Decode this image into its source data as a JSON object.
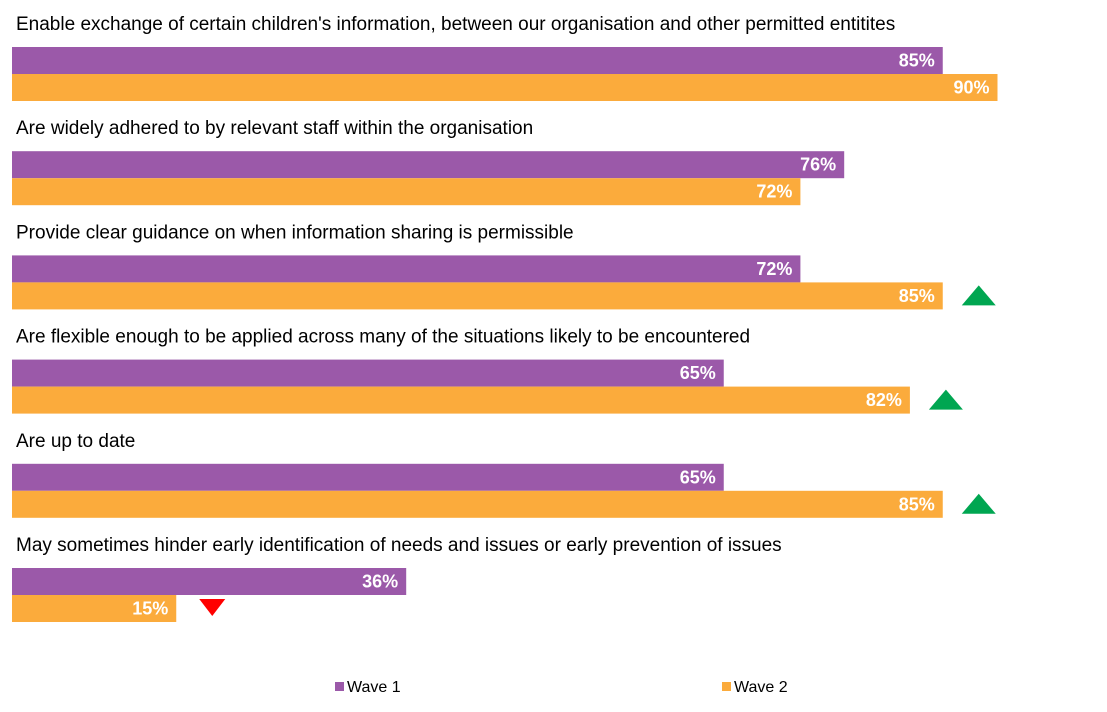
{
  "chart_data": {
    "type": "bar",
    "orientation": "horizontal",
    "title": "",
    "xlabel": "",
    "ylabel": "",
    "xlim": [
      0,
      100
    ],
    "grid": false,
    "legend_position": "bottom",
    "categories": [
      "Enable exchange of certain children's information, between our organisation  and other permitted entitites",
      "Are widely adhered to by relevant staff within the organisation",
      "Provide clear guidance on when information sharing is permissible",
      "Are flexible enough to be applied across many of the situations likely to be encountered",
      "Are up to date",
      "May sometimes hinder early identification of needs and issues or early prevention of issues"
    ],
    "series": [
      {
        "name": "Wave 1",
        "color": "#9b59a9",
        "values": [
          85,
          76,
          72,
          65,
          65,
          36
        ],
        "value_labels": [
          "85%",
          "76%",
          "72%",
          "65%",
          "65%",
          "36%"
        ]
      },
      {
        "name": "Wave 2",
        "color": "#fbab3c",
        "values": [
          90,
          72,
          85,
          82,
          85,
          15
        ],
        "value_labels": [
          "90%",
          "72%",
          "85%",
          "82%",
          "85%",
          "15%"
        ]
      }
    ],
    "change_markers": [
      "none",
      "none",
      "up",
      "up",
      "up",
      "down"
    ],
    "marker_colors": {
      "up": "#00a651",
      "down": "#ff0000"
    }
  }
}
